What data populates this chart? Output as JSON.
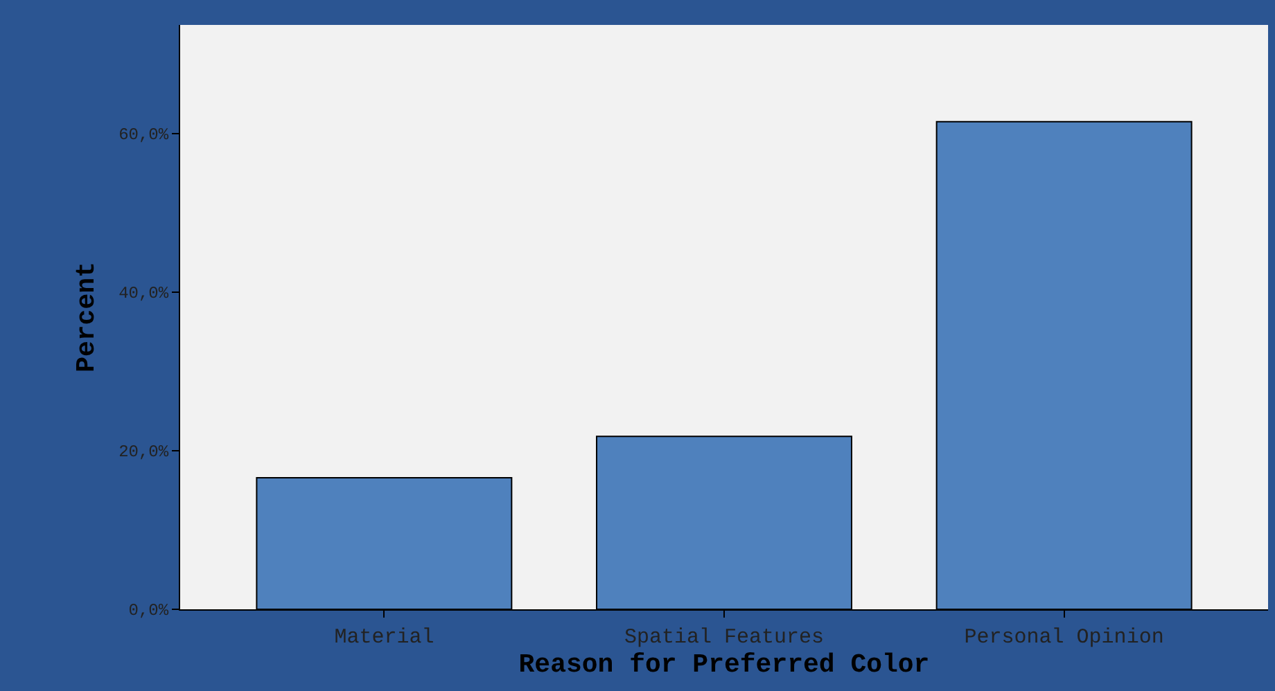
{
  "chart_data": {
    "type": "bar",
    "xlabel": "Reason for Preferred Color",
    "ylabel": "Percent",
    "categories": [
      "Material",
      "Spatial Features",
      "Personal Opinion"
    ],
    "values": [
      16.6,
      21.8,
      61.5
    ],
    "color": "#4f81bd",
    "ylim": [
      0,
      73.7
    ],
    "yticks": [
      {
        "value": 0,
        "label": "0,0%"
      },
      {
        "value": 20,
        "label": "20,0%"
      },
      {
        "value": 40,
        "label": "40,0%"
      },
      {
        "value": 60,
        "label": "60,0%"
      }
    ],
    "grid": false,
    "legend": false
  }
}
